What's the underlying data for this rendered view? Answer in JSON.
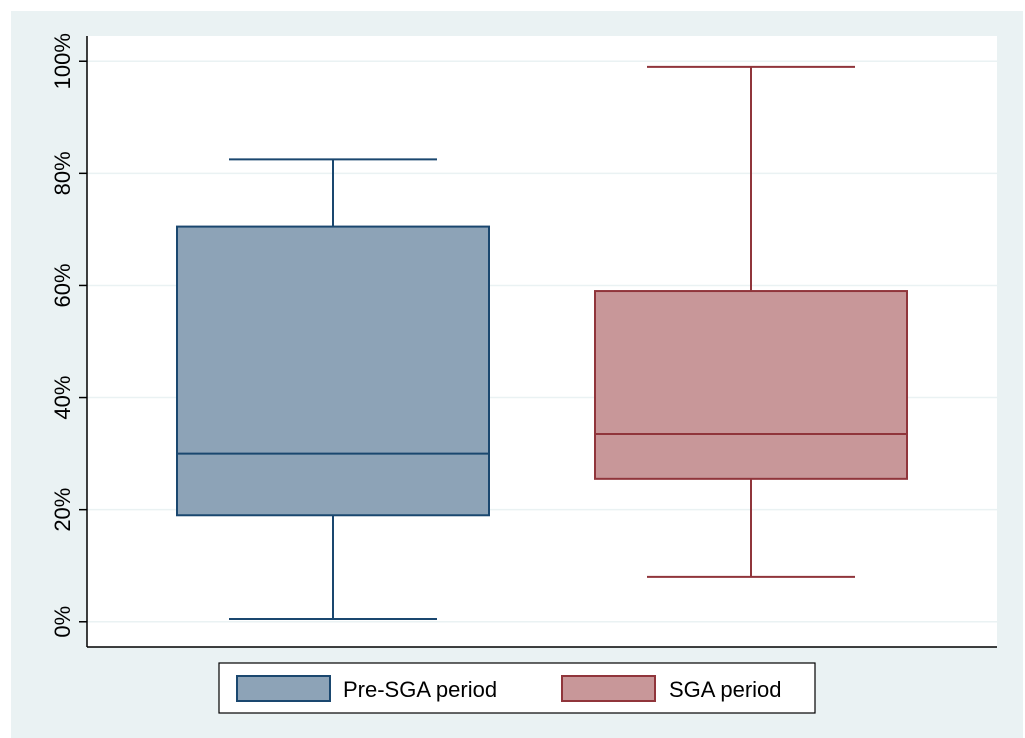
{
  "chart_data": {
    "type": "box",
    "title": "",
    "xlabel": "",
    "ylabel": "",
    "ylim": [
      -4.5,
      104.5
    ],
    "yticks": [
      0,
      20,
      40,
      60,
      80,
      100
    ],
    "ytick_labels": [
      "0%",
      "20%",
      "40%",
      "60%",
      "80%",
      "100%"
    ],
    "grid": true,
    "legend_position": "bottom",
    "series": [
      {
        "name": "Pre-SGA period",
        "color_fill": "#8da3b7",
        "color_line": "#1a476f",
        "whisker_low": 0.5,
        "q1": 19,
        "median": 30,
        "q3": 70.5,
        "whisker_high": 82.5
      },
      {
        "name": "SGA period",
        "color_fill": "#c89799",
        "color_line": "#90353b",
        "whisker_low": 8,
        "q1": 25.5,
        "median": 33.5,
        "q3": 59,
        "whisker_high": 99
      }
    ]
  },
  "colors": {
    "outer_background": "#eaf2f3",
    "plot_background": "#ffffff",
    "gridline": "#eaf2f3"
  }
}
